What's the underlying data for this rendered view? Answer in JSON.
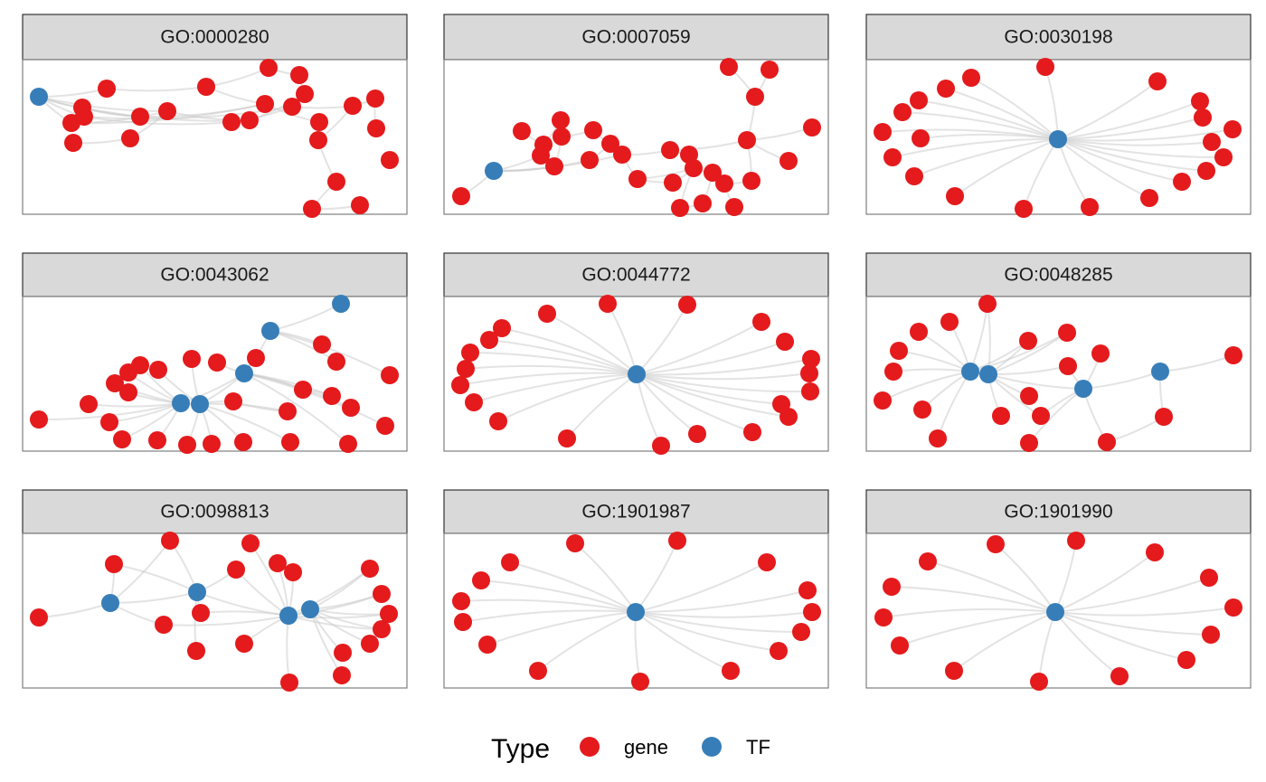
{
  "legend": {
    "title": "Type",
    "items": [
      {
        "key": "gene",
        "label": "gene",
        "color": "#E41A1C"
      },
      {
        "key": "TF",
        "label": "TF",
        "color": "#377EB8"
      }
    ]
  },
  "colors": {
    "gene": "#E41A1C",
    "TF": "#377EB8",
    "edge": "#CCCCCC",
    "strip": "#D9D9D9",
    "panel_border": "#7F7F7F"
  },
  "panels": [
    {
      "title": "GO:0000280"
    },
    {
      "title": "GO:0007059"
    },
    {
      "title": "GO:0030198"
    },
    {
      "title": "GO:0043062"
    },
    {
      "title": "GO:0044772"
    },
    {
      "title": "GO:0048285"
    },
    {
      "title": "GO:0098813"
    },
    {
      "title": "GO:1901987"
    },
    {
      "title": "GO:1901990"
    }
  ]
}
